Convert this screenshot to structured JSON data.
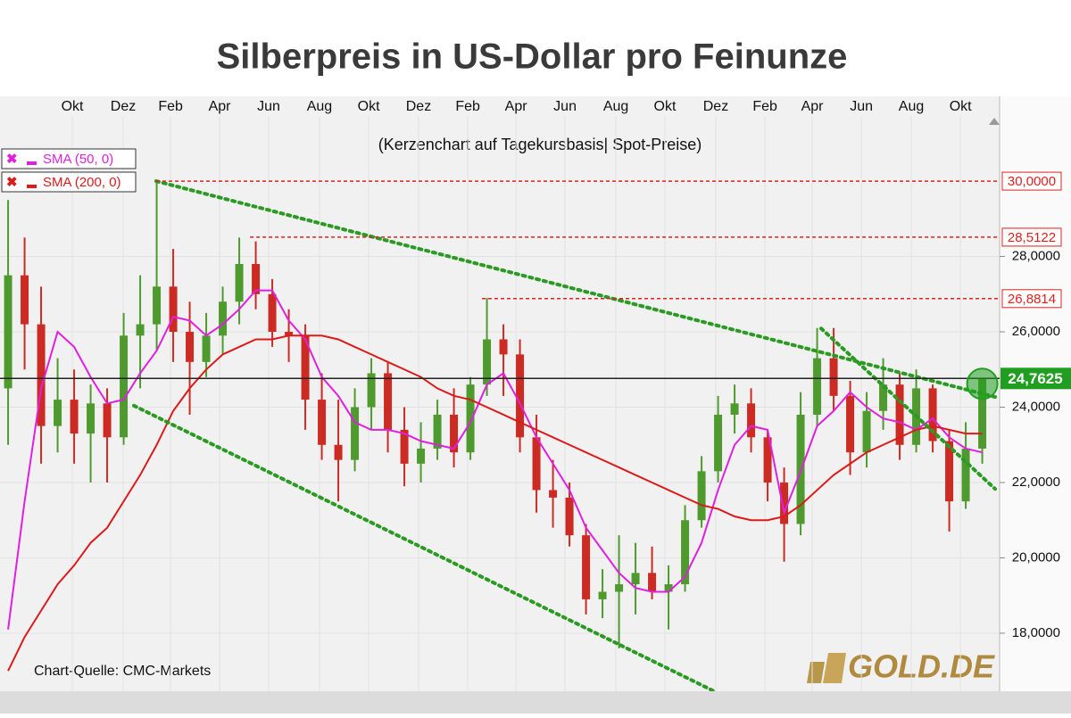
{
  "chart_data": {
    "type": "candlestick",
    "title": "Silberpreis in US-Dollar pro Feinunze",
    "subtitle": "(Kerzenchart auf Tagekursbasis| Spot-Preise)",
    "source": "Chart-Quelle: CMC-Markets",
    "logo": "GOLD.DE",
    "up_color": "#4f9a2e",
    "down_color": "#cc2b24",
    "xlim": [
      -0.49,
      59.78
    ],
    "ylim": [
      16.46,
      31.73
    ],
    "xticks": [
      {
        "value": 3.89,
        "label": "Okt"
      },
      {
        "value": 6.97,
        "label": "Dez"
      },
      {
        "value": 9.84,
        "label": "Feb"
      },
      {
        "value": 12.81,
        "label": "Apr"
      },
      {
        "value": 15.78,
        "label": "Jun"
      },
      {
        "value": 18.86,
        "label": "Aug"
      },
      {
        "value": 21.84,
        "label": "Okt"
      },
      {
        "value": 24.86,
        "label": "Dez"
      },
      {
        "value": 27.84,
        "label": "Feb"
      },
      {
        "value": 30.76,
        "label": "Apr"
      },
      {
        "value": 33.73,
        "label": "Jun"
      },
      {
        "value": 36.81,
        "label": "Aug"
      },
      {
        "value": 39.78,
        "label": "Okt"
      },
      {
        "value": 42.86,
        "label": "Dez"
      },
      {
        "value": 45.84,
        "label": "Feb"
      },
      {
        "value": 48.7,
        "label": "Apr"
      },
      {
        "value": 51.68,
        "label": "Jun"
      },
      {
        "value": 54.7,
        "label": "Aug"
      },
      {
        "value": 57.68,
        "label": "Okt"
      }
    ],
    "yticks": [
      {
        "value": 18,
        "label": "18,0000"
      },
      {
        "value": 20,
        "label": "20,0000"
      },
      {
        "value": 22,
        "label": "22,0000"
      },
      {
        "value": 24,
        "label": "24,0000"
      },
      {
        "value": 26,
        "label": "26,0000"
      },
      {
        "value": 28,
        "label": "28,0000"
      }
    ],
    "grid": true,
    "open": [
      24.5,
      27.5,
      26.2,
      23.5,
      24.2,
      23.3,
      24.1,
      23.2,
      25.9,
      26.2,
      27.2,
      26,
      25.2,
      25.9,
      26.8,
      27.8,
      27,
      26,
      25.9,
      24.2,
      23,
      22.6,
      24,
      24.9,
      23.4,
      22.5,
      22.9,
      23.8,
      22.8,
      24.6,
      25.8,
      25.4,
      23.2,
      21.8,
      21.6,
      20.6,
      18.9,
      19.1,
      19.3,
      19.6,
      19.1,
      19.3,
      21,
      22.3,
      23.8,
      24.1,
      23.2,
      22,
      20.9,
      23.8,
      25.3,
      24.3,
      22.8,
      23.9,
      24.6,
      23,
      24.5,
      23.1,
      21.5,
      22.9
    ],
    "high": [
      29.5,
      28.5,
      27.2,
      25.3,
      25,
      24.6,
      24.5,
      26.5,
      27.5,
      30,
      28.2,
      26.8,
      26.5,
      27.2,
      28.5,
      28.4,
      27.4,
      26.6,
      26.2,
      24.9,
      24.2,
      24.5,
      25.3,
      25.2,
      24,
      23.6,
      24.2,
      24.5,
      24.8,
      26.9,
      26.2,
      25.8,
      23.8,
      22.6,
      22,
      20.9,
      19.7,
      20.6,
      20.4,
      20.3,
      19.8,
      21.4,
      22.7,
      24.3,
      24.6,
      24.5,
      23.4,
      22.4,
      24.4,
      26.1,
      26.1,
      24.7,
      24.4,
      25.3,
      24.9,
      25,
      24.6,
      23.4,
      23.6,
      24.76
    ],
    "low": [
      23,
      25,
      22.5,
      22.8,
      22.5,
      22,
      22,
      23,
      24.5,
      25.5,
      25.2,
      23.8,
      24.8,
      25.4,
      26.2,
      26.6,
      25.6,
      25.2,
      23.4,
      22.6,
      21.5,
      22.3,
      23.4,
      22.8,
      21.9,
      22,
      22.6,
      22.4,
      22.6,
      24.3,
      24.3,
      22.8,
      21.2,
      20.8,
      20.3,
      18.5,
      18.4,
      17.6,
      18.5,
      18.9,
      18.1,
      19.1,
      20.8,
      22,
      23.3,
      22.8,
      21.5,
      19.9,
      20.6,
      23.5,
      23.9,
      22.2,
      22.4,
      23.4,
      22.6,
      22.8,
      22.8,
      20.7,
      21.3,
      22.5
    ],
    "close": [
      27.5,
      26.2,
      23.5,
      24.2,
      23.3,
      24.1,
      23.2,
      25.9,
      26.2,
      27.2,
      26,
      25.2,
      25.9,
      26.8,
      27.8,
      27,
      26,
      25.9,
      24.2,
      23,
      22.6,
      24,
      24.9,
      23.4,
      22.5,
      22.9,
      23.8,
      22.8,
      24.6,
      25.8,
      25.4,
      23.2,
      21.8,
      21.6,
      20.6,
      18.9,
      19.1,
      19.3,
      19.6,
      19.1,
      19.3,
      21,
      22.3,
      23.8,
      24.1,
      23.2,
      22,
      20.9,
      23.8,
      25.3,
      24.3,
      22.8,
      23.9,
      24.6,
      23,
      24.5,
      23.1,
      21.5,
      22.9,
      24.76
    ],
    "overlays": [
      {
        "name": "SMA (50, 0)",
        "color": "#e11fe1",
        "values": [
          18.1,
          21.5,
          24.5,
          26,
          25.6,
          24.8,
          24.1,
          24.2,
          24.9,
          25.5,
          26.4,
          26.3,
          25.9,
          26.2,
          26.6,
          27.1,
          27.1,
          26.3,
          25.8,
          24.8,
          24.3,
          23.6,
          23.4,
          23.4,
          23.3,
          23.1,
          23,
          22.9,
          23.6,
          24.6,
          24.9,
          24.1,
          23.2,
          22.5,
          21.8,
          20.8,
          20.2,
          19.6,
          19.2,
          19.1,
          19.1,
          19.5,
          20.4,
          21.8,
          23,
          23.5,
          23.4,
          21.2,
          22.3,
          23.5,
          23.9,
          24.4,
          24,
          23.7,
          23.6,
          23.4,
          23.7,
          23.2,
          22.9,
          22.8
        ]
      },
      {
        "name": "SMA (200, 0)",
        "color": "#dd1a1a",
        "values": [
          17,
          17.9,
          18.6,
          19.3,
          19.8,
          20.4,
          20.8,
          21.5,
          22.2,
          23,
          23.9,
          24.5,
          25,
          25.4,
          25.6,
          25.8,
          25.8,
          25.9,
          25.9,
          25.9,
          25.8,
          25.6,
          25.4,
          25.2,
          25,
          24.8,
          24.5,
          24.3,
          24.2,
          24,
          23.8,
          23.6,
          23.4,
          23.2,
          23,
          22.8,
          22.6,
          22.4,
          22.2,
          22,
          21.8,
          21.6,
          21.4,
          21.3,
          21.1,
          21,
          21,
          21.1,
          21.4,
          21.8,
          22.2,
          22.5,
          22.8,
          23,
          23.2,
          23.4,
          23.5,
          23.4,
          23.3,
          23.3
        ]
      }
    ],
    "levels": [
      {
        "value": 30,
        "label": "30,0000",
        "x": 8.97
      },
      {
        "value": 28.5122,
        "label": "28,5122",
        "x": 14.65
      },
      {
        "value": 26.8814,
        "label": "26,8814",
        "x": 28.7
      }
    ],
    "level_color": "#e02020",
    "current": {
      "value": 24.7625,
      "label": "24,7625",
      "color": "#1f9e1f"
    },
    "trendlines": [
      {
        "x": [
          8.97,
          59.78
        ],
        "y": [
          30,
          24.27
        ]
      },
      {
        "x": [
          7.62,
          42.76
        ],
        "y": [
          24.04,
          16.46
        ]
      },
      {
        "x": [
          49.24,
          59.78
        ],
        "y": [
          26.09,
          21.83
        ]
      }
    ],
    "trend_color": "#2a9a22"
  }
}
